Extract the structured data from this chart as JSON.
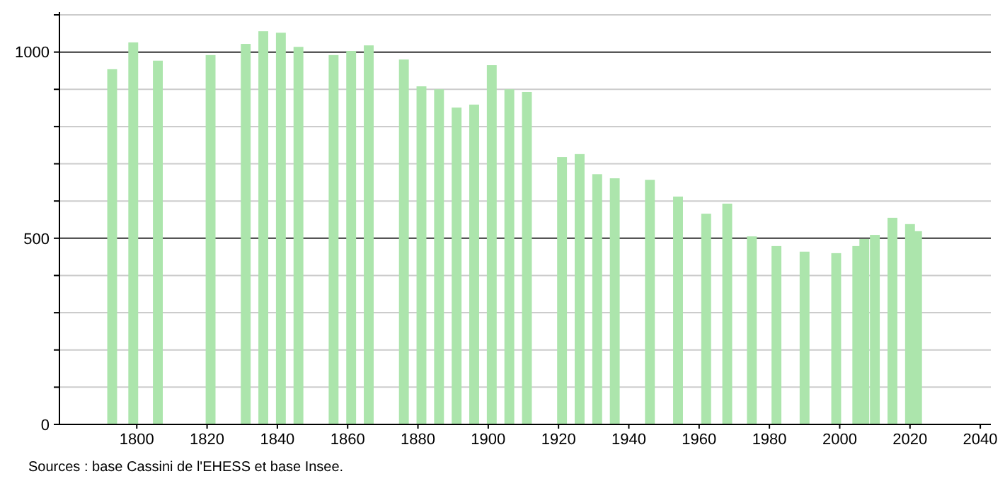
{
  "chart_data": {
    "type": "bar",
    "x": [
      1793,
      1799,
      1806,
      1821,
      1831,
      1836,
      1841,
      1846,
      1856,
      1861,
      1866,
      1876,
      1881,
      1886,
      1891,
      1896,
      1901,
      1906,
      1911,
      1921,
      1926,
      1931,
      1936,
      1946,
      1954,
      1962,
      1968,
      1975,
      1982,
      1990,
      1999,
      2005,
      2007,
      2010,
      2015,
      2020,
      2022
    ],
    "values": [
      954,
      1026,
      977,
      992,
      1022,
      1056,
      1052,
      1014,
      992,
      1003,
      1018,
      980,
      908,
      900,
      851,
      859,
      965,
      900,
      893,
      718,
      726,
      672,
      661,
      657,
      612,
      566,
      593,
      505,
      479,
      464,
      460,
      479,
      498,
      509,
      555,
      538,
      519
    ],
    "color": "#ace5ac",
    "xlim": [
      1778,
      2043
    ],
    "xticks": [
      1800,
      1820,
      1840,
      1860,
      1880,
      1900,
      1920,
      1940,
      1960,
      1980,
      2000,
      2020,
      2040
    ],
    "ylim": [
      0,
      1100
    ],
    "yticks": [
      0,
      {
        "value": 100,
        "label": null
      },
      {
        "value": 200,
        "label": null
      },
      {
        "value": 300,
        "label": null
      },
      {
        "value": 400,
        "label": null
      },
      500,
      {
        "value": 600,
        "label": null
      },
      {
        "value": 700,
        "label": null
      },
      {
        "value": 800,
        "label": null
      },
      {
        "value": 900,
        "label": null
      },
      1000,
      {
        "value": 1100,
        "label": null
      }
    ],
    "grid": "y",
    "annotations": [
      "Sources : base Cassini de l'EHESS et base Insee."
    ]
  }
}
